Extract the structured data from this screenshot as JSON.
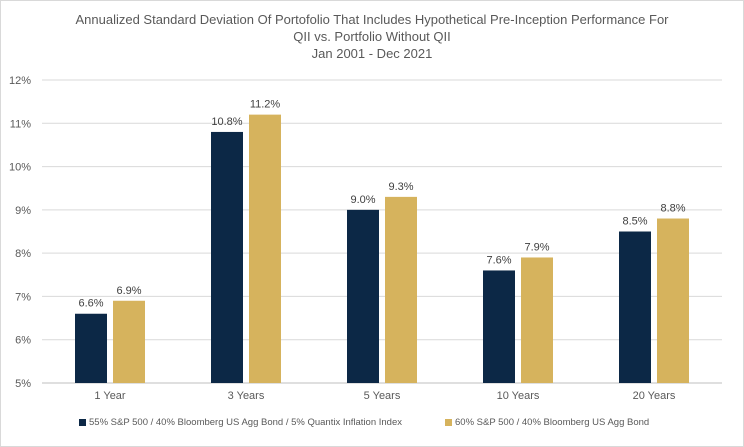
{
  "chart_data": {
    "type": "bar",
    "title_lines": [
      "Annualized Standard Deviation Of Portofolio That Includes Hypothetical Pre-Inception Performance For",
      "QII vs. Portfolio Without QII",
      "Jan 2001 - Dec 2021"
    ],
    "categories": [
      "1 Year",
      "3 Years",
      "5 Years",
      "10 Years",
      "20 Years"
    ],
    "series": [
      {
        "name": "55% S&P 500 / 40% Bloomberg US Agg Bond / 5% Quantix Inflation Index",
        "color": "#0c2846",
        "values": [
          6.6,
          10.8,
          9.0,
          7.6,
          8.5
        ],
        "labels": [
          "6.6%",
          "10.8%",
          "9.0%",
          "7.6%",
          "8.5%"
        ]
      },
      {
        "name": "60% S&P 500 / 40% Bloomberg US Agg Bond",
        "color": "#d6b35d",
        "values": [
          6.9,
          11.2,
          9.3,
          7.9,
          8.8
        ],
        "labels": [
          "6.9%",
          "11.2%",
          "9.3%",
          "7.9%",
          "8.8%"
        ]
      }
    ],
    "ylim": [
      5,
      12
    ],
    "yticks": [
      "5%",
      "6%",
      "7%",
      "8%",
      "9%",
      "10%",
      "11%",
      "12%"
    ],
    "grid": true,
    "legend": "bottom",
    "xlabel": "",
    "ylabel": ""
  }
}
